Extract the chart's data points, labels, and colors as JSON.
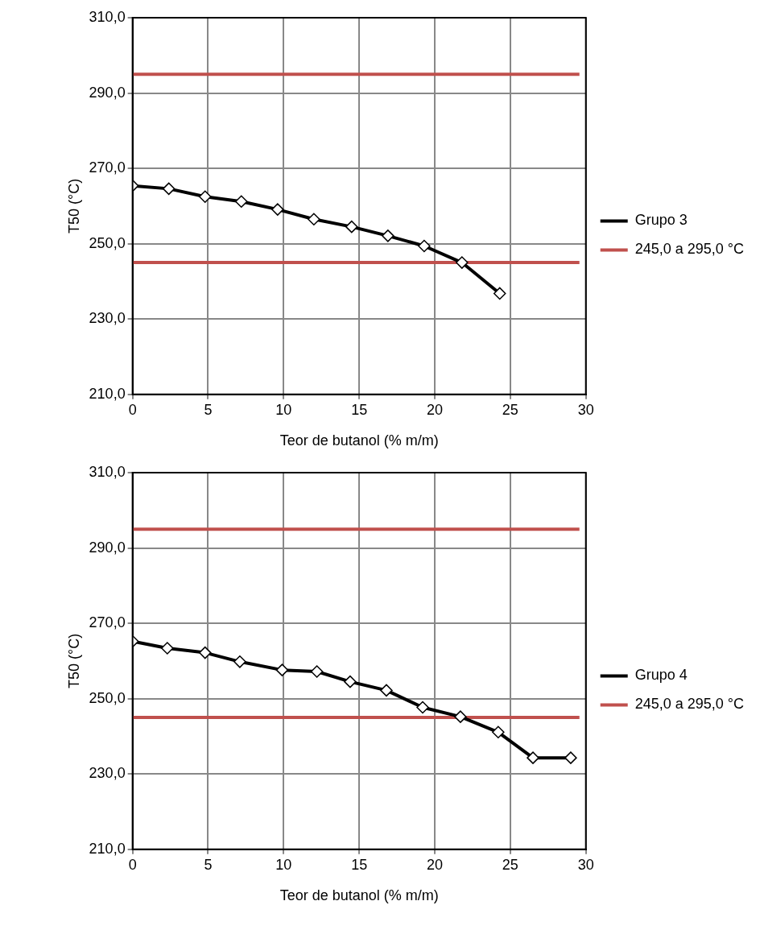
{
  "chart_data": [
    {
      "type": "line",
      "xlabel": "Teor de butanol (% m/m)",
      "ylabel": "T50 (°C)",
      "xlim": [
        0,
        30
      ],
      "xticks": [
        0,
        5,
        10,
        15,
        20,
        25,
        30
      ],
      "ylim": [
        210,
        310
      ],
      "yticks": [
        {
          "value": 210,
          "label": "210,0"
        },
        {
          "value": 230,
          "label": "230,0"
        },
        {
          "value": 250,
          "label": "250,0"
        },
        {
          "value": 270,
          "label": "270,0"
        },
        {
          "value": 290,
          "label": "290,0"
        },
        {
          "value": 310,
          "label": "310,0"
        }
      ],
      "grid": true,
      "legend": "right",
      "marker": "diamond",
      "line_style": "solid",
      "series": [
        {
          "name": "Grupo 3",
          "color": "#000000",
          "x": [
            0,
            2.4,
            4.8,
            7.2,
            9.6,
            12.0,
            14.5,
            16.9,
            19.3,
            21.8,
            24.3
          ],
          "values": [
            265.4,
            264.6,
            262.5,
            261.2,
            259.1,
            256.5,
            254.5,
            252.1,
            249.4,
            245.0,
            236.8
          ]
        }
      ],
      "ref_lines": [
        {
          "axis": "y",
          "value": 245,
          "label": "245,0 a 295,0 °C",
          "color": "#c0504d"
        },
        {
          "axis": "y",
          "value": 295,
          "color": "#c0504d"
        }
      ]
    },
    {
      "type": "line",
      "xlabel": "Teor de butanol (% m/m)",
      "ylabel": "T50 (°C)",
      "xlim": [
        0,
        30
      ],
      "xticks": [
        0,
        5,
        10,
        15,
        20,
        25,
        30
      ],
      "ylim": [
        210,
        310
      ],
      "yticks": [
        {
          "value": 210,
          "label": "210,0"
        },
        {
          "value": 230,
          "label": "230,0"
        },
        {
          "value": 250,
          "label": "250,0"
        },
        {
          "value": 270,
          "label": "270,0"
        },
        {
          "value": 290,
          "label": "290,0"
        },
        {
          "value": 310,
          "label": "310,0"
        }
      ],
      "grid": true,
      "legend": "right",
      "marker": "diamond",
      "line_style": "solid",
      "series": [
        {
          "name": "Grupo 4",
          "color": "#000000",
          "x": [
            0,
            2.3,
            4.8,
            7.1,
            9.9,
            12.2,
            14.4,
            16.8,
            19.2,
            21.7,
            24.2,
            26.5,
            29.0
          ],
          "values": [
            265.2,
            263.4,
            262.2,
            259.8,
            257.6,
            257.2,
            254.5,
            252.2,
            247.7,
            245.2,
            241.1,
            234.3,
            234.3
          ]
        }
      ],
      "ref_lines": [
        {
          "axis": "y",
          "value": 245,
          "label": "245,0 a 295,0 °C",
          "color": "#c0504d"
        },
        {
          "axis": "y",
          "value": 295,
          "color": "#c0504d"
        }
      ]
    }
  ]
}
